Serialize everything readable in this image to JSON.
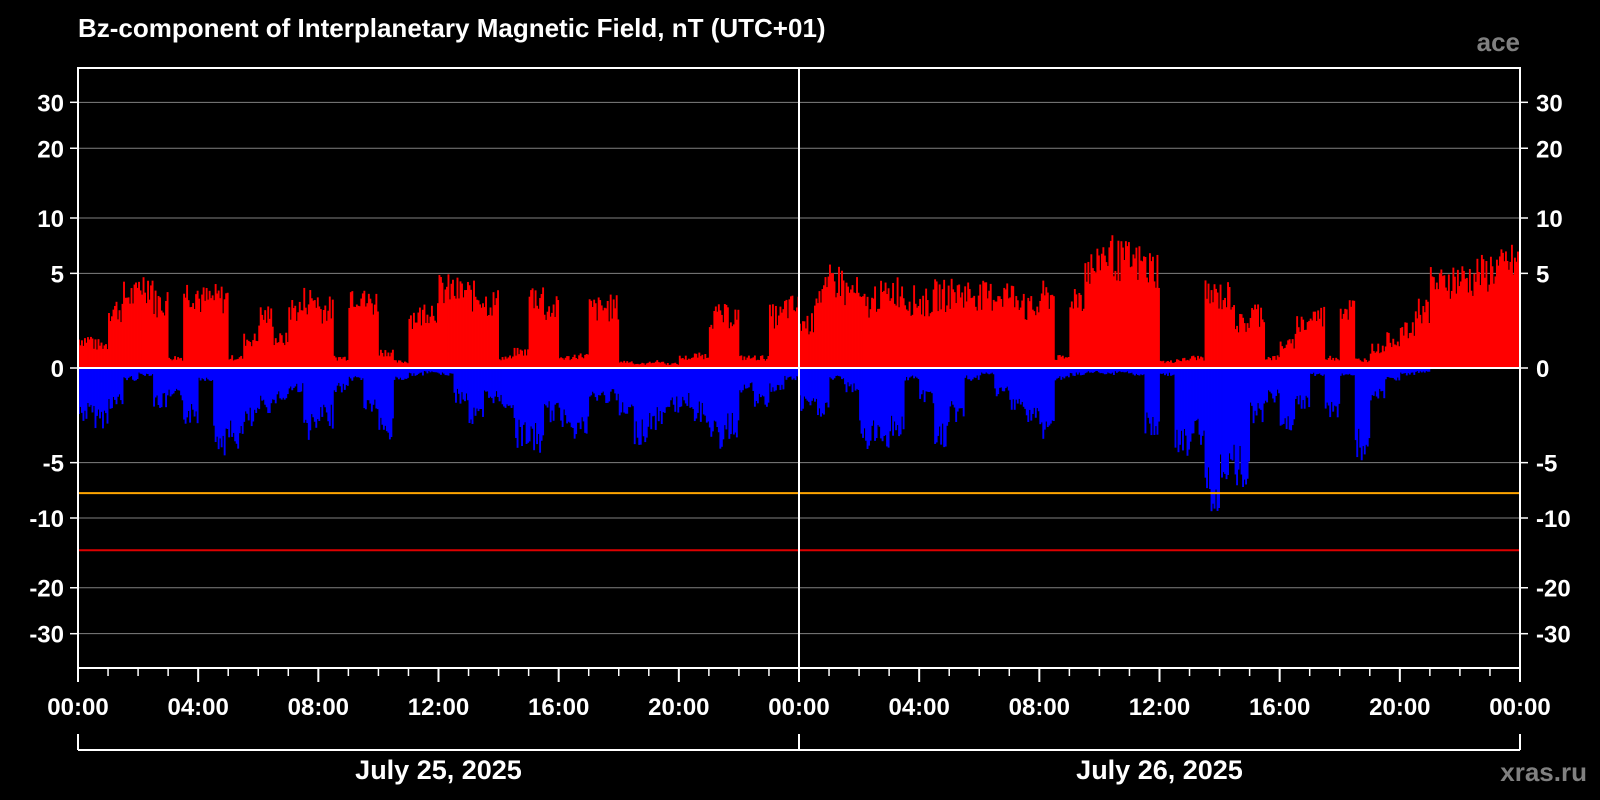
{
  "chart_data": {
    "type": "bar",
    "title": "Bz-component of Interplanetary Magnetic Field, nT (UTC+01)",
    "source_label": "ace",
    "watermark": "xras.ru",
    "y_ticks": [
      30,
      20,
      10,
      5,
      0,
      -5,
      -10,
      -20,
      -30
    ],
    "y_tick_labels": [
      "30",
      "20",
      "10",
      "5",
      "0",
      "-5",
      "-10",
      "-20",
      "-30"
    ],
    "y_scale": "symmetric-log",
    "ylim": [
      -40,
      40
    ],
    "x_range_hours": [
      0,
      48
    ],
    "x_tick_labels": [
      "00:00",
      "04:00",
      "08:00",
      "12:00",
      "16:00",
      "20:00",
      "00:00",
      "04:00",
      "08:00",
      "12:00",
      "16:00",
      "20:00",
      "00:00"
    ],
    "x_tick_hours": [
      0,
      4,
      8,
      12,
      16,
      20,
      24,
      28,
      32,
      36,
      40,
      44,
      48
    ],
    "dates": [
      "July 25, 2025",
      "July 26, 2025"
    ],
    "threshold_lines": [
      {
        "value": -7.5,
        "color": "#ffa500"
      },
      {
        "value": -14,
        "color": "#dd0000"
      }
    ],
    "colors": {
      "background": "#000000",
      "positive": "#ff0000",
      "negative": "#0000ff",
      "grid": "#808080",
      "zero_line": "#ffffff",
      "frame": "#ffffff"
    },
    "series": [
      {
        "x_hours": [
          0,
          0.5,
          1,
          1.5,
          2,
          2.5,
          3,
          3.5,
          4,
          4.5,
          5,
          5.5,
          6,
          6.5,
          7,
          7.5,
          8,
          8.5,
          9,
          9.5,
          10,
          10.5,
          11,
          11.5,
          12,
          12.5,
          13,
          13.5,
          14,
          14.5,
          15,
          15.5,
          16,
          16.5,
          17,
          17.5,
          18,
          18.5,
          19,
          19.5,
          20,
          20.5,
          21,
          21.5,
          22,
          22.5,
          23,
          23.5,
          24,
          24.5,
          25,
          25.5,
          26,
          26.5,
          27,
          27.5,
          28,
          28.5,
          29,
          29.5,
          30,
          30.5,
          31,
          31.5,
          32,
          32.5,
          33,
          33.5,
          34,
          34.5,
          35,
          35.5,
          36,
          36.5,
          37,
          37.5,
          38,
          38.5,
          39,
          39.5,
          40,
          40.5,
          41,
          41.5,
          42,
          42.5,
          43,
          43.5,
          44,
          44.5,
          45,
          45.5,
          46,
          46.5,
          47,
          47.5
        ],
        "max": [
          1.5,
          1.2,
          3.5,
          4.5,
          5.5,
          4,
          0.5,
          4.8,
          4.2,
          4.3,
          0.5,
          1.5,
          3,
          1.5,
          3.5,
          4.2,
          3.5,
          0.5,
          4.8,
          4,
          0.8,
          0.3,
          3,
          3.5,
          5,
          4.8,
          4.5,
          4,
          0.5,
          0.8,
          4.5,
          3.5,
          0.5,
          0.6,
          3.5,
          3.6,
          0.3,
          0.2,
          0.3,
          0.2,
          0.5,
          0.6,
          3,
          3,
          0.5,
          0.5,
          3,
          3.6,
          2.5,
          4.8,
          5.8,
          4.8,
          3.8,
          4.5,
          5,
          4.2,
          4,
          4.6,
          4.8,
          4.7,
          4.5,
          4.7,
          4.5,
          3.5,
          4.5,
          0.5,
          4.5,
          7,
          8.5,
          7.8,
          7.5,
          7,
          0.3,
          0.4,
          0.5,
          4.5,
          4.5,
          2.5,
          3.2,
          0.5,
          1.2,
          2.5,
          3,
          0.5,
          3.5,
          0.4,
          1,
          1.5,
          2,
          3.5,
          5.5,
          6,
          6,
          6.5,
          7,
          7.5
        ],
        "min": [
          -2.5,
          -2.8,
          -1.8,
          -0.5,
          -0.3,
          -1.8,
          -1.5,
          -2.6,
          -0.5,
          -4.5,
          -4.2,
          -3,
          -2,
          -1.5,
          -1,
          -3.5,
          -2.8,
          -1,
          -0.5,
          -2,
          -3.8,
          -0.5,
          -0.3,
          -0.2,
          -0.3,
          -1.5,
          -2.8,
          -1.5,
          -1.8,
          -4,
          -4.5,
          -2.5,
          -2.8,
          -3.5,
          -1.5,
          -1.5,
          -2.5,
          -3.8,
          -3,
          -2,
          -1.8,
          -2.5,
          -4.2,
          -3.5,
          -1,
          -1.8,
          -1,
          -0.5,
          -2,
          -2.2,
          -0.5,
          -1,
          -4.2,
          -4,
          -3.5,
          -0.5,
          -1.5,
          -4.2,
          -2.5,
          -0.5,
          -0.3,
          -1.2,
          -1.8,
          -2.8,
          -3.5,
          -0.5,
          -0.3,
          -0.2,
          -0.3,
          -0.2,
          -0.3,
          -3.5,
          -0.3,
          -5,
          -4,
          -9.5,
          -6.5,
          -7,
          -2.5,
          -1.5,
          -3,
          -2,
          -0.3,
          -2.5,
          -0.3,
          -5,
          -1.5,
          -0.5,
          -0.3,
          -0.2,
          0,
          0,
          0,
          0,
          0,
          0
        ]
      }
    ]
  }
}
